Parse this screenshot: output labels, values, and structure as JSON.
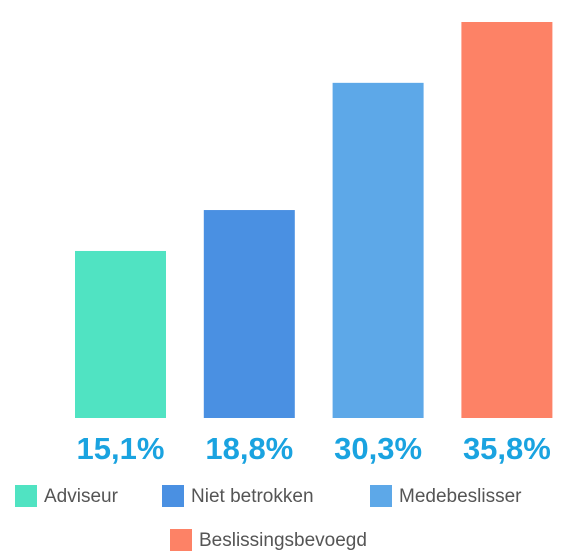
{
  "chart_data": {
    "type": "bar",
    "categories": [
      "Adviseur",
      "Niet betrokken",
      "Medebeslisser",
      "Beslissingsbevoegd"
    ],
    "values": [
      15.1,
      18.8,
      30.3,
      35.8
    ],
    "value_labels": [
      "15,1%",
      "18,8%",
      "30,3%",
      "35,8%"
    ],
    "colors": [
      "#50e3c2",
      "#4a90e2",
      "#5da8e8",
      "#fd8266"
    ],
    "legend": "bottom"
  }
}
